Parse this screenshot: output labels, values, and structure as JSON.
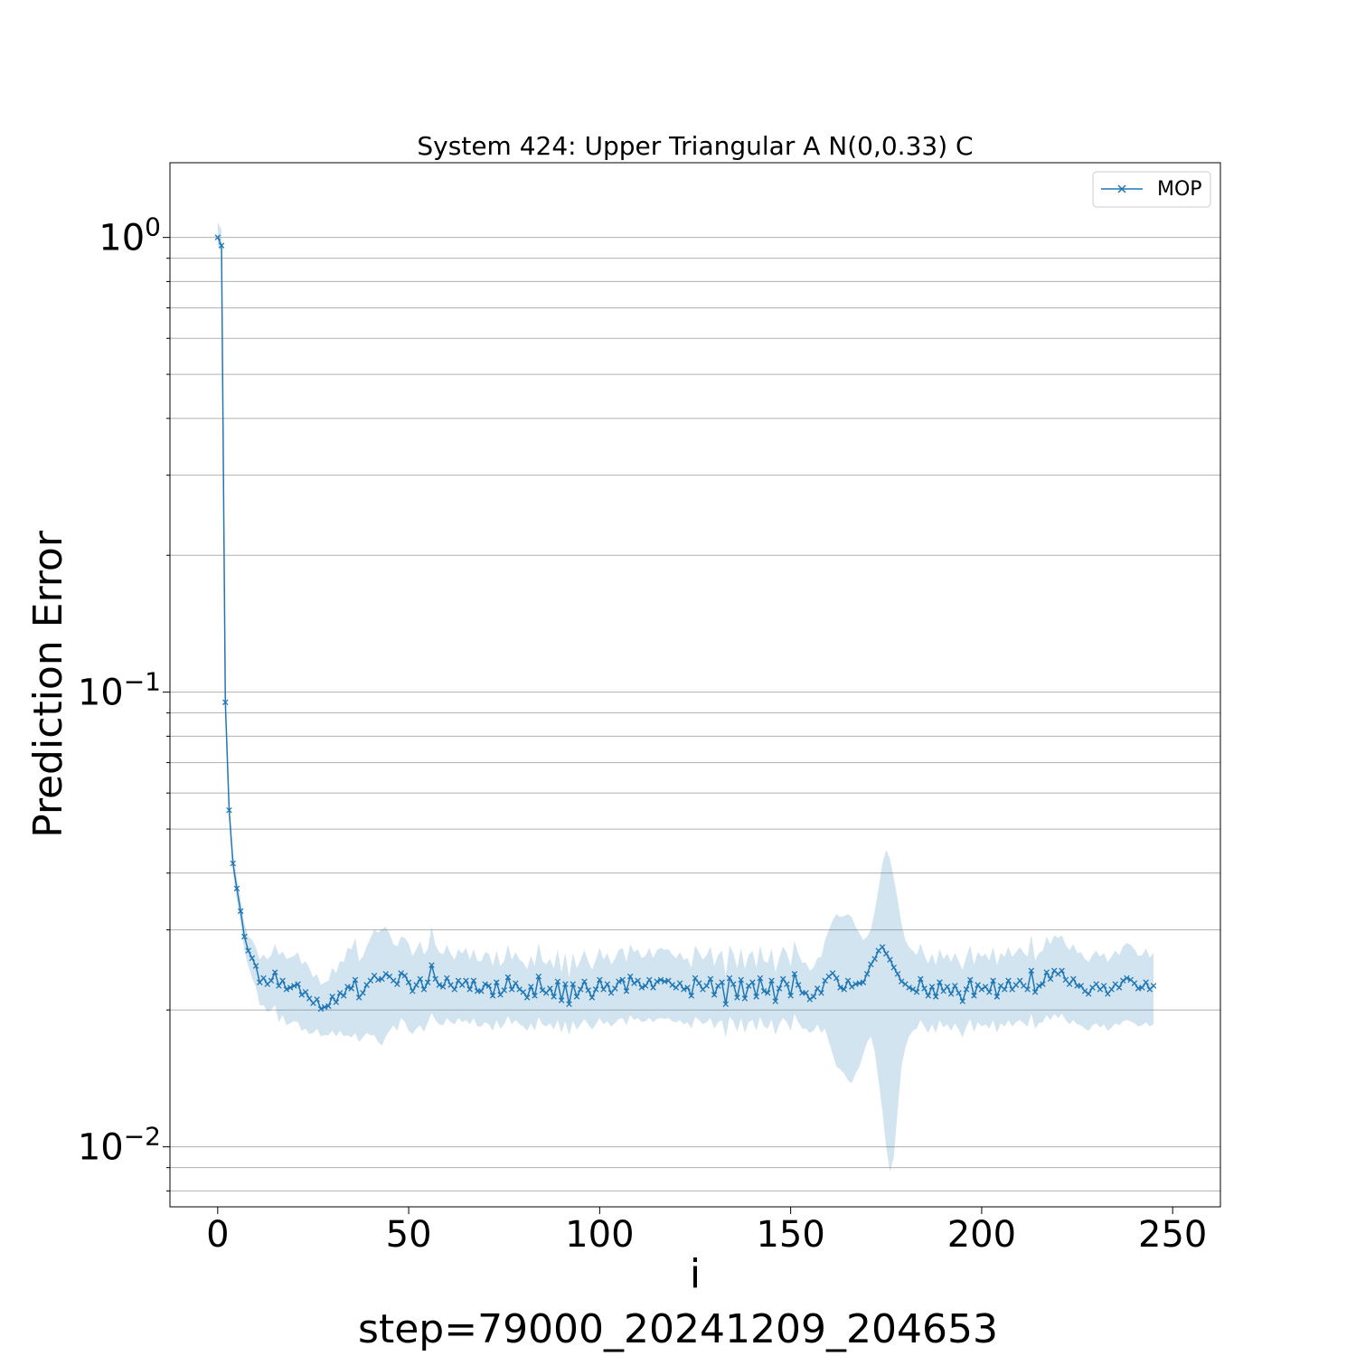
{
  "chart_data": {
    "type": "line",
    "title": "System 424: Upper Triangular A N(0,0.33) C",
    "xlabel": "i",
    "ylabel": "Prediction Error",
    "footer": "step=79000_20241209_204653",
    "x_ticks": [
      "0",
      "50",
      "100",
      "150",
      "200",
      "250"
    ],
    "y_ticks": [
      {
        "base": "10",
        "exp": "0",
        "value": 1
      },
      {
        "base": "10",
        "exp": "−1",
        "value": 0.1
      },
      {
        "base": "10",
        "exp": "−2",
        "value": 0.01
      }
    ],
    "xlim": [
      -12.5,
      262.5
    ],
    "ylim": [
      0.00738,
      1.46
    ],
    "y_scale": "log",
    "grid": "y-minor",
    "legend": {
      "position": "top-right"
    },
    "colors": {
      "line": "#1f77b4",
      "band": "#1f77b4"
    },
    "series": [
      {
        "name": "MOP",
        "marker": "x",
        "x_start": 0,
        "values": [
          1.0,
          0.96,
          0.095,
          0.055,
          0.042,
          0.037,
          0.033,
          0.029,
          0.027,
          0.026,
          0.025,
          0.023,
          0.0235,
          0.0228,
          0.0232,
          0.0242,
          0.0226,
          0.0232,
          0.0222,
          0.0224,
          0.0226,
          0.0228,
          0.0216,
          0.0219,
          0.0212,
          0.0207,
          0.0211,
          0.0201,
          0.0203,
          0.0204,
          0.0214,
          0.0208,
          0.0218,
          0.0215,
          0.0225,
          0.0223,
          0.0233,
          0.0213,
          0.0218,
          0.0227,
          0.0232,
          0.0238,
          0.0233,
          0.0234,
          0.024,
          0.0237,
          0.0232,
          0.0228,
          0.0241,
          0.0238,
          0.023,
          0.022,
          0.0227,
          0.0234,
          0.0222,
          0.023,
          0.0251,
          0.0234,
          0.0227,
          0.0225,
          0.0235,
          0.0227,
          0.0222,
          0.0232,
          0.0227,
          0.0232,
          0.0222,
          0.0232,
          0.022,
          0.022,
          0.0228,
          0.0226,
          0.0215,
          0.023,
          0.0216,
          0.0221,
          0.0236,
          0.0222,
          0.0229,
          0.0222,
          0.0219,
          0.0213,
          0.0225,
          0.0215,
          0.0237,
          0.0221,
          0.0218,
          0.0223,
          0.0214,
          0.0231,
          0.021,
          0.0228,
          0.0206,
          0.0228,
          0.0214,
          0.0222,
          0.0231,
          0.0221,
          0.0213,
          0.0222,
          0.0233,
          0.0222,
          0.0228,
          0.0218,
          0.0223,
          0.0231,
          0.0233,
          0.022,
          0.0237,
          0.0229,
          0.0232,
          0.0224,
          0.0226,
          0.0233,
          0.0224,
          0.0231,
          0.0233,
          0.0231,
          0.0232,
          0.0227,
          0.0224,
          0.0229,
          0.0222,
          0.0224,
          0.0215,
          0.0235,
          0.0229,
          0.0222,
          0.0226,
          0.0234,
          0.0216,
          0.0226,
          0.023,
          0.0206,
          0.0235,
          0.0228,
          0.0213,
          0.0233,
          0.0212,
          0.0226,
          0.023,
          0.0214,
          0.0235,
          0.022,
          0.0218,
          0.0232,
          0.0209,
          0.0223,
          0.0234,
          0.0228,
          0.0215,
          0.024,
          0.0227,
          0.0218,
          0.0218,
          0.0211,
          0.0214,
          0.0223,
          0.0218,
          0.0232,
          0.0237,
          0.0241,
          0.0235,
          0.0224,
          0.0222,
          0.0232,
          0.0225,
          0.0228,
          0.0229,
          0.023,
          0.024,
          0.0252,
          0.0259,
          0.027,
          0.0275,
          0.0266,
          0.0258,
          0.0248,
          0.024,
          0.0231,
          0.0228,
          0.0224,
          0.0222,
          0.0219,
          0.0234,
          0.0223,
          0.0215,
          0.0225,
          0.0214,
          0.023,
          0.022,
          0.0225,
          0.0217,
          0.0226,
          0.0218,
          0.0209,
          0.0222,
          0.0233,
          0.0215,
          0.0227,
          0.0222,
          0.0225,
          0.0219,
          0.0232,
          0.0214,
          0.0226,
          0.0222,
          0.0232,
          0.0222,
          0.0227,
          0.0232,
          0.0226,
          0.0222,
          0.0244,
          0.0219,
          0.0226,
          0.0228,
          0.0242,
          0.0234,
          0.0244,
          0.024,
          0.0244,
          0.0233,
          0.0228,
          0.0234,
          0.0226,
          0.0226,
          0.022,
          0.0217,
          0.0224,
          0.0228,
          0.0222,
          0.0226,
          0.0217,
          0.0222,
          0.0228,
          0.0224,
          0.0232,
          0.0235,
          0.0233,
          0.0229,
          0.0223,
          0.0224,
          0.023,
          0.0222,
          0.0226
        ],
        "band_lower": [
          0.96,
          0.93,
          0.091,
          0.053,
          0.04,
          0.035,
          0.031,
          0.027,
          0.025,
          0.0235,
          0.0225,
          0.0205,
          0.0205,
          0.0198,
          0.02,
          0.0205,
          0.0188,
          0.0195,
          0.0185,
          0.0187,
          0.0189,
          0.0188,
          0.018,
          0.0182,
          0.0177,
          0.0178,
          0.0182,
          0.0175,
          0.0176,
          0.0176,
          0.018,
          0.0175,
          0.018,
          0.0175,
          0.0176,
          0.0174,
          0.0178,
          0.017,
          0.0174,
          0.0178,
          0.0176,
          0.0176,
          0.017,
          0.0167,
          0.0175,
          0.018,
          0.0185,
          0.018,
          0.0192,
          0.0188,
          0.018,
          0.0177,
          0.0182,
          0.0185,
          0.0179,
          0.0188,
          0.0197,
          0.019,
          0.0186,
          0.0185,
          0.0192,
          0.0188,
          0.0186,
          0.0192,
          0.0188,
          0.019,
          0.0186,
          0.0192,
          0.0184,
          0.0184,
          0.0188,
          0.0186,
          0.018,
          0.019,
          0.0182,
          0.0186,
          0.0194,
          0.0186,
          0.019,
          0.0186,
          0.0184,
          0.018,
          0.0187,
          0.018,
          0.0193,
          0.0186,
          0.0184,
          0.0187,
          0.0181,
          0.019,
          0.0178,
          0.0189,
          0.0176,
          0.0189,
          0.0181,
          0.0186,
          0.0191,
          0.0186,
          0.0181,
          0.0186,
          0.0192,
          0.0186,
          0.0189,
          0.0184,
          0.0187,
          0.0191,
          0.0192,
          0.0185,
          0.0195,
          0.019,
          0.0192,
          0.0188,
          0.0189,
          0.0192,
          0.0188,
          0.0191,
          0.0192,
          0.0191,
          0.0192,
          0.0189,
          0.0188,
          0.019,
          0.0186,
          0.0188,
          0.0182,
          0.0193,
          0.019,
          0.0186,
          0.0188,
          0.0192,
          0.0182,
          0.0188,
          0.019,
          0.0174,
          0.0193,
          0.0189,
          0.0179,
          0.0192,
          0.0178,
          0.0188,
          0.019,
          0.018,
          0.0193,
          0.0184,
          0.0182,
          0.0191,
          0.0176,
          0.0186,
          0.0192,
          0.0188,
          0.018,
          0.0196,
          0.0188,
          0.0182,
          0.0182,
          0.0178,
          0.018,
          0.0186,
          0.0178,
          0.0182,
          0.017,
          0.016,
          0.015,
          0.0148,
          0.0145,
          0.014,
          0.0138,
          0.0145,
          0.015,
          0.016,
          0.017,
          0.0175,
          0.0162,
          0.014,
          0.012,
          0.01,
          0.0088,
          0.0095,
          0.012,
          0.015,
          0.0165,
          0.0175,
          0.018,
          0.0182,
          0.019,
          0.0184,
          0.0178,
          0.0186,
          0.0178,
          0.019,
          0.0183,
          0.0186,
          0.018,
          0.0187,
          0.0181,
          0.0174,
          0.0184,
          0.0191,
          0.0179,
          0.0188,
          0.0184,
          0.0186,
          0.0182,
          0.019,
          0.0178,
          0.0187,
          0.0184,
          0.019,
          0.0184,
          0.0188,
          0.019,
          0.0187,
          0.0184,
          0.0196,
          0.0182,
          0.0187,
          0.0188,
          0.0195,
          0.019,
          0.0196,
          0.0192,
          0.0196,
          0.019,
          0.0186,
          0.019,
          0.0186,
          0.0185,
          0.0182,
          0.018,
          0.0185,
          0.0187,
          0.0183,
          0.0186,
          0.018,
          0.0183,
          0.0187,
          0.0185,
          0.0189,
          0.019,
          0.0189,
          0.0187,
          0.0184,
          0.0185,
          0.0188,
          0.0184,
          0.0186
        ],
        "band_upper": [
          1.08,
          1.04,
          0.099,
          0.057,
          0.044,
          0.039,
          0.035,
          0.031,
          0.029,
          0.0285,
          0.0275,
          0.0258,
          0.0265,
          0.0258,
          0.0264,
          0.0279,
          0.0264,
          0.0269,
          0.0259,
          0.0261,
          0.0263,
          0.0268,
          0.0252,
          0.0256,
          0.0247,
          0.0236,
          0.024,
          0.0227,
          0.023,
          0.0232,
          0.0248,
          0.0241,
          0.0256,
          0.0255,
          0.0274,
          0.0272,
          0.0288,
          0.0256,
          0.0262,
          0.0276,
          0.0288,
          0.03,
          0.0296,
          0.0301,
          0.0305,
          0.0294,
          0.0279,
          0.0276,
          0.029,
          0.0288,
          0.028,
          0.0263,
          0.0272,
          0.0283,
          0.0265,
          0.0272,
          0.0305,
          0.0278,
          0.0268,
          0.0265,
          0.0278,
          0.0266,
          0.0258,
          0.0272,
          0.0266,
          0.0274,
          0.0258,
          0.0272,
          0.0256,
          0.0256,
          0.0268,
          0.0266,
          0.025,
          0.027,
          0.025,
          0.0256,
          0.0278,
          0.0258,
          0.0268,
          0.0258,
          0.0254,
          0.0246,
          0.0263,
          0.025,
          0.0281,
          0.0256,
          0.0252,
          0.0259,
          0.0247,
          0.0272,
          0.0242,
          0.0267,
          0.0236,
          0.0267,
          0.0247,
          0.0258,
          0.0271,
          0.0256,
          0.0245,
          0.0258,
          0.0274,
          0.0258,
          0.0267,
          0.0252,
          0.0259,
          0.0271,
          0.0274,
          0.0255,
          0.0279,
          0.0268,
          0.0272,
          0.026,
          0.0263,
          0.0274,
          0.026,
          0.0271,
          0.0274,
          0.0271,
          0.0272,
          0.0265,
          0.026,
          0.0268,
          0.0258,
          0.026,
          0.0248,
          0.0277,
          0.0268,
          0.0258,
          0.0264,
          0.0276,
          0.025,
          0.0264,
          0.027,
          0.0238,
          0.0277,
          0.0267,
          0.0247,
          0.0274,
          0.0246,
          0.0264,
          0.027,
          0.0248,
          0.0277,
          0.0256,
          0.0254,
          0.0273,
          0.0242,
          0.026,
          0.0276,
          0.0267,
          0.025,
          0.0284,
          0.0266,
          0.0254,
          0.0254,
          0.0244,
          0.0248,
          0.026,
          0.0262,
          0.0285,
          0.03,
          0.0315,
          0.0325,
          0.032,
          0.0322,
          0.0325,
          0.032,
          0.0305,
          0.0295,
          0.0285,
          0.029,
          0.03,
          0.033,
          0.037,
          0.042,
          0.045,
          0.043,
          0.039,
          0.035,
          0.031,
          0.0285,
          0.0275,
          0.027,
          0.0264,
          0.028,
          0.0264,
          0.0253,
          0.0266,
          0.0251,
          0.0272,
          0.0259,
          0.0266,
          0.0255,
          0.0267,
          0.0256,
          0.0245,
          0.0262,
          0.0277,
          0.0252,
          0.0268,
          0.0262,
          0.0266,
          0.0257,
          0.0275,
          0.0251,
          0.0267,
          0.0262,
          0.0275,
          0.0262,
          0.0268,
          0.0275,
          0.0267,
          0.0262,
          0.0292,
          0.0257,
          0.0267,
          0.027,
          0.029,
          0.0279,
          0.0292,
          0.0288,
          0.0292,
          0.0278,
          0.0271,
          0.0279,
          0.0267,
          0.0268,
          0.0259,
          0.0255,
          0.0264,
          0.027,
          0.0262,
          0.0267,
          0.0255,
          0.0262,
          0.027,
          0.0264,
          0.0276,
          0.0281,
          0.0278,
          0.0272,
          0.0263,
          0.0264,
          0.0273,
          0.0261,
          0.0267
        ]
      }
    ]
  }
}
